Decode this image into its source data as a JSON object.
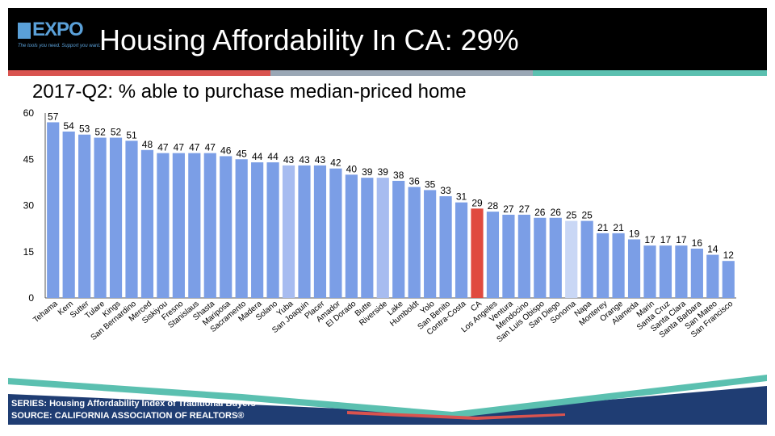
{
  "header": {
    "logo_text": "EXPO",
    "logo_tagline": "The tools you need. Support you want.",
    "title": "Housing Affordability In CA: 29%"
  },
  "footer": {
    "series": "SERIES: Housing Affordability Index of Traditional Buyers",
    "source": "SOURCE:  CALIFORNIA ASSOCIATION OF REALTORS®"
  },
  "colors": {
    "bar": "#7b9ee6",
    "bar_light": "#a7bcf0",
    "bar_lighter": "#c9d7f5",
    "highlight": "#e04a3f",
    "header_bg": "#000000",
    "footer_navy": "#1f3d73",
    "footer_teal": "#5bc0b0",
    "footer_red": "#d9534f"
  },
  "chart_data": {
    "type": "bar",
    "title": "2017-Q2: % able to purchase median-priced home",
    "xlabel": "",
    "ylabel": "",
    "ylim": [
      0,
      60
    ],
    "yticks": [
      0,
      15,
      30,
      45,
      60
    ],
    "grid": false,
    "categories": [
      "Tehama",
      "Kern",
      "Sutter",
      "Tulare",
      "Kings",
      "San Bernardino",
      "Merced",
      "Siskiyou",
      "Fresno",
      "Stanislaus",
      "Shasta",
      "Mariposa",
      "Sacramento",
      "Madera",
      "Solano",
      "Yuba",
      "San Joaquin",
      "Placer",
      "Amador",
      "El Dorado",
      "Butte",
      "Riverside",
      "Lake",
      "Humboldt",
      "Yolo",
      "San Benito",
      "Contra-Costa",
      "CA",
      "Los Angeles",
      "Ventura",
      "Mendocino",
      "San Luis Obispo",
      "San Diego",
      "Sonoma",
      "Napa",
      "Monterey",
      "Orange",
      "Alameda",
      "Marin",
      "Santa Cruz",
      "Santa Clara",
      "Santa Barbara",
      "San Mateo",
      "San Francisco"
    ],
    "values": [
      57,
      54,
      53,
      52,
      52,
      51,
      48,
      47,
      47,
      47,
      47,
      46,
      45,
      44,
      44,
      43,
      43,
      43,
      42,
      40,
      39,
      39,
      38,
      36,
      35,
      33,
      31,
      29,
      28,
      27,
      27,
      26,
      26,
      25,
      25,
      21,
      21,
      19,
      17,
      17,
      17,
      16,
      14,
      12
    ],
    "highlight_category": "CA",
    "lighter_categories": [
      "Yuba",
      "Riverside",
      "Sonoma"
    ]
  }
}
